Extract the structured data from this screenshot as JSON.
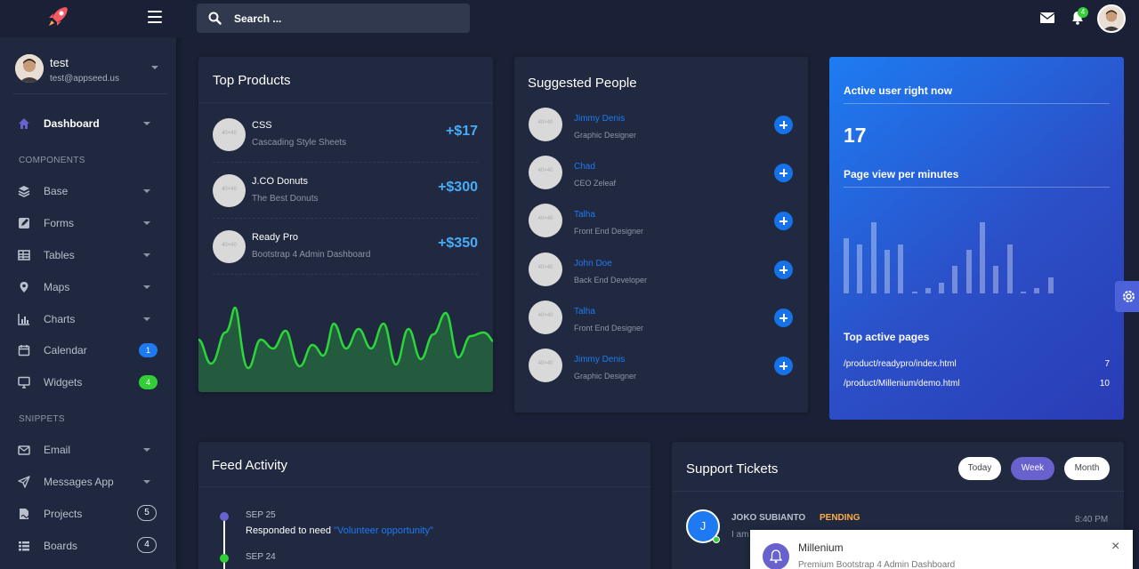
{
  "sidebar": {
    "user": {
      "name": "test",
      "email": "test@appseed.us"
    },
    "sections": [
      "COMPONENTS",
      "SNIPPETS"
    ],
    "items": [
      {
        "label": "Dashboard"
      },
      {
        "label": "Base"
      },
      {
        "label": "Forms"
      },
      {
        "label": "Tables"
      },
      {
        "label": "Maps"
      },
      {
        "label": "Charts"
      },
      {
        "label": "Calendar",
        "badge": "1"
      },
      {
        "label": "Widgets",
        "badge": "4"
      },
      {
        "label": "Email"
      },
      {
        "label": "Messages App"
      },
      {
        "label": "Projects",
        "badge": "5"
      },
      {
        "label": "Boards",
        "badge": "4"
      }
    ]
  },
  "topbar": {
    "search_placeholder": "Search ...",
    "notification_count": "4"
  },
  "top_products": {
    "title": "Top Products",
    "items": [
      {
        "name": "CSS",
        "desc": "Cascading Style Sheets",
        "value": "+$17"
      },
      {
        "name": "J.CO Donuts",
        "desc": "The Best Donuts",
        "value": "+$300"
      },
      {
        "name": "Ready Pro",
        "desc": "Bootstrap 4 Admin Dashboard",
        "value": "+$350"
      }
    ],
    "placeholder_text": "40×40"
  },
  "suggested_people": {
    "title": "Suggested People",
    "items": [
      {
        "name": "Jimmy Denis",
        "role": "Graphic Designer"
      },
      {
        "name": "Chad",
        "role": "CEO Zeleaf"
      },
      {
        "name": "Talha",
        "role": "Front End Designer"
      },
      {
        "name": "John Doe",
        "role": "Back End Developer"
      },
      {
        "name": "Talha",
        "role": "Front End Designer"
      },
      {
        "name": "Jimmy Denis",
        "role": "Graphic Designer"
      }
    ]
  },
  "active_users": {
    "title": "Active user right now",
    "count": "17",
    "subtitle": "Page view per minutes",
    "page_views": [
      10,
      9,
      13,
      8,
      9,
      0,
      1,
      2,
      5,
      8,
      13,
      5,
      9,
      0,
      1,
      3
    ],
    "pages_title": "Top active pages",
    "pages": [
      {
        "url": "/product/readypro/index.html",
        "count": "7"
      },
      {
        "url": "/product/Millenium/demo.html",
        "count": "10"
      }
    ]
  },
  "feed": {
    "title": "Feed Activity",
    "entries": [
      {
        "date": "SEP 25",
        "text": "Responded to need ",
        "link": "\"Volunteer opportunity\"",
        "color": "#6861ce"
      },
      {
        "date": "SEP 24",
        "color": "#31ce36"
      }
    ]
  },
  "tickets": {
    "title": "Support Tickets",
    "filters": [
      "Today",
      "Week",
      "Month"
    ],
    "active_filter": "Week",
    "items": [
      {
        "initial": "J",
        "name": "JOKO SUBIANTO",
        "status": "PENDING",
        "time": "8:40 PM",
        "preview": "I am"
      }
    ]
  },
  "toast": {
    "title": "Millenium",
    "subtitle": "Premium Bootstrap 4 Admin Dashboard"
  },
  "colors": {
    "bg": "#1a2035",
    "card": "#202940",
    "primary": "#1572e8",
    "success": "#31ce36",
    "secondary": "#6861ce",
    "warning": "#ffad46"
  }
}
